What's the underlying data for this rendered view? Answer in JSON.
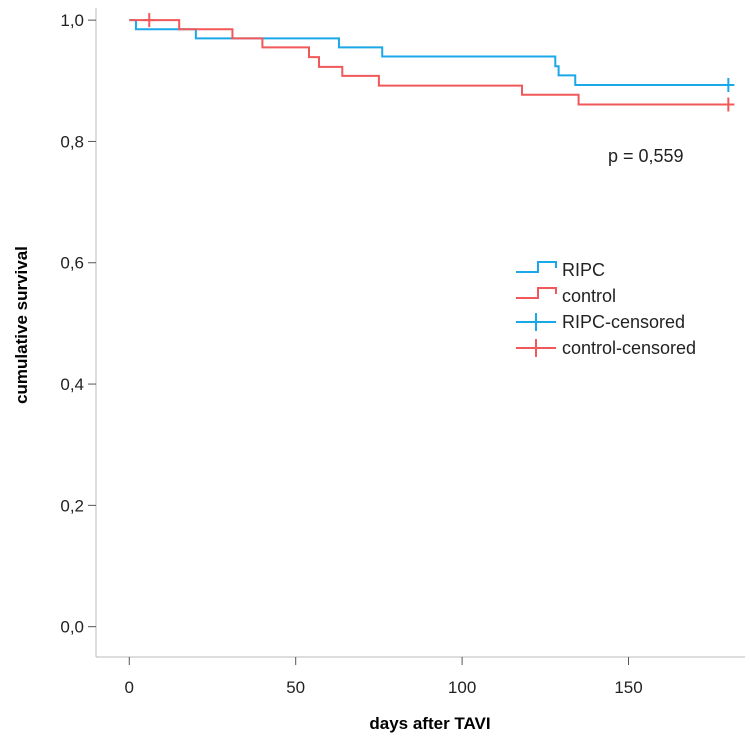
{
  "chart_data": {
    "type": "line",
    "subtype": "kaplan-meier step",
    "xlabel": "days after TAVI",
    "ylabel": "cumulative survival",
    "xlim": [
      -10,
      185
    ],
    "ylim": [
      -0.05,
      1.02
    ],
    "x_ticks": [
      {
        "value": 0,
        "label": "0"
      },
      {
        "value": 50,
        "label": "50"
      },
      {
        "value": 100,
        "label": "100"
      },
      {
        "value": 150,
        "label": "150"
      }
    ],
    "y_ticks": [
      {
        "value": 0.0,
        "label": "0,0"
      },
      {
        "value": 0.2,
        "label": "0,2"
      },
      {
        "value": 0.4,
        "label": "0,4"
      },
      {
        "value": 0.6,
        "label": "0,6"
      },
      {
        "value": 0.8,
        "label": "0,8"
      },
      {
        "value": 1.0,
        "label": "1,0"
      }
    ],
    "annotation": "p = 0,559",
    "legend": {
      "position": "right",
      "entries": [
        {
          "label": "RIPC",
          "marker": "step",
          "color": "#1ba8e8"
        },
        {
          "label": "control",
          "marker": "step",
          "color": "#f0585a"
        },
        {
          "label": "RIPC-censored",
          "marker": "plus",
          "color": "#1ba8e8"
        },
        {
          "label": "control-censored",
          "marker": "plus",
          "color": "#f0585a"
        }
      ]
    },
    "series": [
      {
        "name": "RIPC",
        "color": "#1ba8e8",
        "steps": [
          [
            0,
            1.0
          ],
          [
            2,
            0.985
          ],
          [
            20,
            0.97
          ],
          [
            63,
            0.955
          ],
          [
            76,
            0.94
          ],
          [
            128,
            0.924
          ],
          [
            129,
            0.909
          ],
          [
            134,
            0.893
          ],
          [
            180,
            0.893
          ]
        ],
        "censored": [
          [
            180,
            0.893
          ]
        ]
      },
      {
        "name": "control",
        "color": "#f0585a",
        "steps": [
          [
            0,
            1.0
          ],
          [
            15,
            0.985
          ],
          [
            31,
            0.97
          ],
          [
            40,
            0.955
          ],
          [
            54,
            0.939
          ],
          [
            57,
            0.923
          ],
          [
            64,
            0.908
          ],
          [
            75,
            0.892
          ],
          [
            118,
            0.877
          ],
          [
            135,
            0.861
          ],
          [
            180,
            0.861
          ]
        ],
        "censored": [
          [
            6,
            1.0
          ],
          [
            180,
            0.861
          ]
        ]
      }
    ]
  }
}
